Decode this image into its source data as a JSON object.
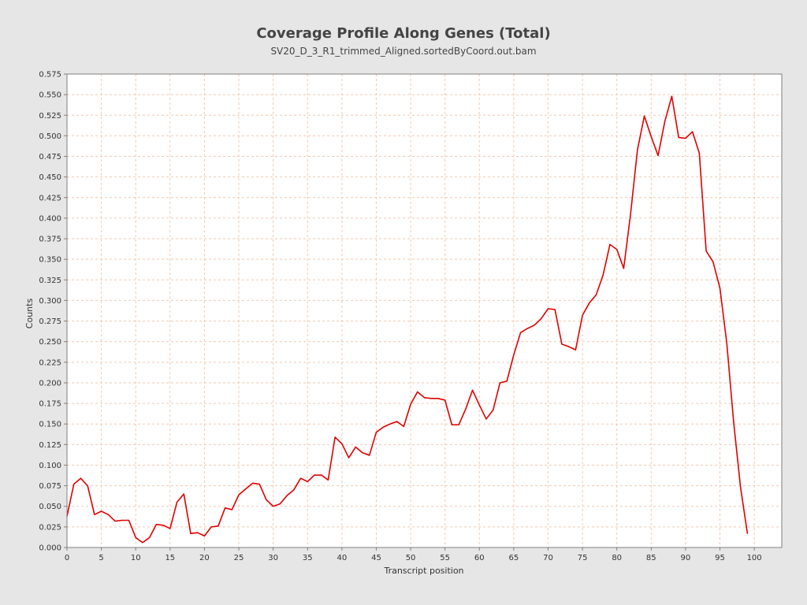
{
  "chart_data": {
    "type": "line",
    "title": "Coverage Profile Along Genes (Total)",
    "subtitle": "SV20_D_3_R1_trimmed_Aligned.sortedByCoord.out.bam",
    "xlabel": "Transcript position",
    "ylabel": "Counts",
    "xlim": [
      0,
      104
    ],
    "ylim": [
      0,
      0.575
    ],
    "x_ticks": [
      0,
      5,
      10,
      15,
      20,
      25,
      30,
      35,
      40,
      45,
      50,
      55,
      60,
      65,
      70,
      75,
      80,
      85,
      90,
      95,
      100
    ],
    "y_ticks": [
      0.0,
      0.025,
      0.05,
      0.075,
      0.1,
      0.125,
      0.15,
      0.175,
      0.2,
      0.225,
      0.25,
      0.275,
      0.3,
      0.325,
      0.35,
      0.375,
      0.4,
      0.425,
      0.45,
      0.475,
      0.5,
      0.525,
      0.55,
      0.575
    ],
    "grid": true,
    "colors": {
      "line": "#e00000",
      "grid": "#f2c9b0",
      "plot_bg": "#ffffff",
      "page_bg": "#e6e6e6"
    },
    "series": [
      {
        "name": "",
        "x": [
          0,
          1,
          2,
          3,
          4,
          5,
          6,
          7,
          8,
          9,
          10,
          11,
          12,
          13,
          14,
          15,
          16,
          17,
          18,
          19,
          20,
          21,
          22,
          23,
          24,
          25,
          26,
          27,
          28,
          29,
          30,
          31,
          32,
          33,
          34,
          35,
          36,
          37,
          38,
          39,
          40,
          41,
          42,
          43,
          44,
          45,
          46,
          47,
          48,
          49,
          50,
          51,
          52,
          53,
          54,
          55,
          56,
          57,
          58,
          59,
          60,
          61,
          62,
          63,
          64,
          65,
          66,
          67,
          68,
          69,
          70,
          71,
          72,
          73,
          74,
          75,
          76,
          77,
          78,
          79,
          80,
          81,
          82,
          83,
          84,
          85,
          86,
          87,
          88,
          89,
          90,
          91,
          92,
          93,
          94,
          95,
          96,
          97,
          98,
          99
        ],
        "values": [
          0.038,
          0.077,
          0.084,
          0.075,
          0.04,
          0.044,
          0.04,
          0.032,
          0.033,
          0.033,
          0.012,
          0.006,
          0.012,
          0.028,
          0.027,
          0.023,
          0.055,
          0.065,
          0.017,
          0.018,
          0.014,
          0.025,
          0.026,
          0.048,
          0.046,
          0.064,
          0.071,
          0.078,
          0.077,
          0.058,
          0.05,
          0.053,
          0.063,
          0.07,
          0.084,
          0.08,
          0.088,
          0.088,
          0.082,
          0.134,
          0.126,
          0.109,
          0.122,
          0.115,
          0.112,
          0.14,
          0.146,
          0.15,
          0.153,
          0.147,
          0.174,
          0.189,
          0.182,
          0.181,
          0.181,
          0.179,
          0.149,
          0.149,
          0.168,
          0.191,
          0.173,
          0.156,
          0.167,
          0.2,
          0.202,
          0.234,
          0.261,
          0.266,
          0.27,
          0.278,
          0.29,
          0.289,
          0.247,
          0.244,
          0.24,
          0.282,
          0.297,
          0.307,
          0.331,
          0.368,
          0.362,
          0.339,
          0.405,
          0.483,
          0.524,
          0.499,
          0.476,
          0.518,
          0.548,
          0.498,
          0.497,
          0.505,
          0.479,
          0.36,
          0.347,
          0.315,
          0.248,
          0.152,
          0.073,
          0.017
        ]
      }
    ]
  }
}
